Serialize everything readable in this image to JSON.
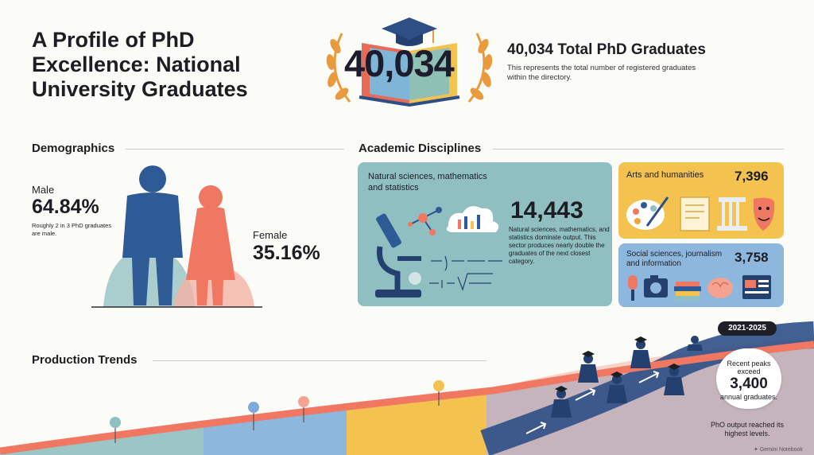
{
  "header": {
    "title": "A Profile of PhD Excellence: National University Graduates",
    "hero_number": "40,034",
    "total_title": "40,034 Total PhD Graduates",
    "total_description": "This represents the total number of registered graduates within the directory."
  },
  "demographics": {
    "title": "Demographics",
    "male": {
      "label": "Male",
      "percent": "64.84%",
      "note": "Roughly 2 in 3 PhD graduates are male."
    },
    "female": {
      "label": "Female",
      "percent": "35.16%"
    }
  },
  "disciplines": {
    "title": "Academic Disciplines",
    "natural": {
      "label": "Natural sciences, mathematics and statistics",
      "count": "14,443",
      "description": "Natural sciences, mathematics, and statistics dominate output. This sector produces nearly double the graduates of the next closest category."
    },
    "arts": {
      "label": "Arts and humanities",
      "count": "7,396"
    },
    "social": {
      "label": "Social sciences, journalism and information",
      "count": "3,758"
    }
  },
  "trends": {
    "title": "Production Trends",
    "period": "2021-2025",
    "peak_pre": "Recent peaks exceed",
    "peak_number": "3,400",
    "peak_post": "annual graduates.",
    "footnote": "PhO output reached its highest levels."
  },
  "watermark": "Gemini Notebook",
  "colors": {
    "teal": "#8fbfc0",
    "yellow": "#f3c24f",
    "blue": "#8db7dc",
    "navy": "#2e4f86",
    "coral": "#f07862",
    "dark": "#1d1d24"
  }
}
